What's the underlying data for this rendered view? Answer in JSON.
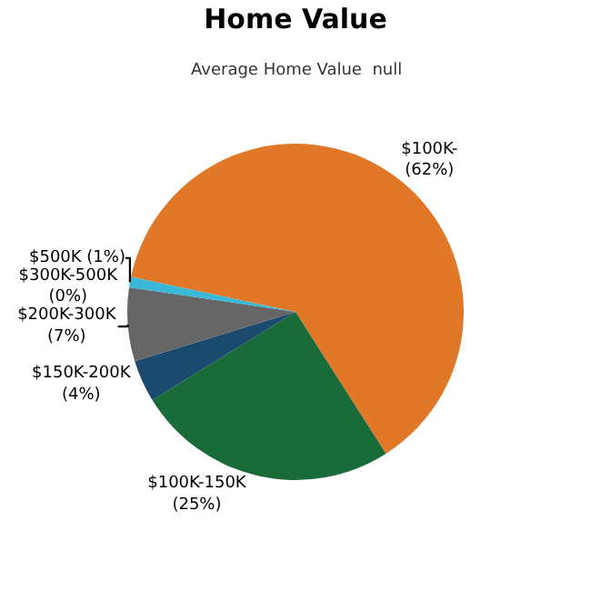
{
  "chart_data": {
    "type": "pie",
    "title": "Home Value",
    "subtitle": "Average Home Value  null",
    "categories": [
      "$100K-",
      "$100K-150K",
      "$150K-200K",
      "$200K-300K",
      "$300K-500K",
      "$500K"
    ],
    "values": [
      62,
      25,
      4,
      7,
      0,
      1
    ],
    "value_labels": [
      "(62%)",
      "(25%)",
      "(4%)",
      "(7%)",
      "(0%)",
      "(1%)"
    ],
    "colors": [
      "#e07828",
      "#1a6b3a",
      "#1a4a6e",
      "#666666",
      "#999999",
      "#3ab8d8"
    ],
    "legend": false
  }
}
